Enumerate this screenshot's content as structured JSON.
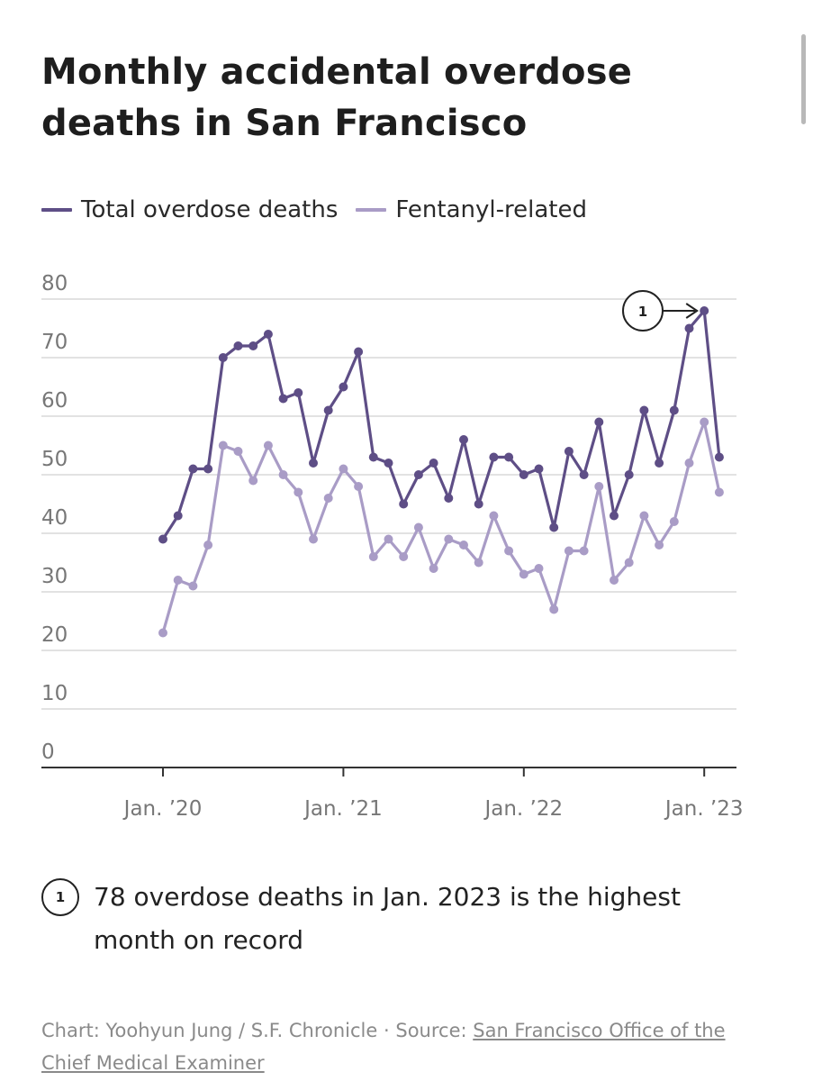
{
  "title": "Monthly accidental overdose deaths in San Francisco",
  "legend": [
    {
      "label": "Total overdose deaths",
      "color": "#5e4e86"
    },
    {
      "label": "Fentanyl-related",
      "color": "#a99cc6"
    }
  ],
  "annotation": {
    "marker": "1",
    "text": "78 overdose deaths in Jan. 2023 is the highest month on record"
  },
  "footer": {
    "credit": "Chart: Yoohyun Jung / S.F. Chronicle",
    "separator": "·",
    "source_label": "Source:",
    "source_link": "San Francisco Office of the Chief Medical Examiner"
  },
  "chart_data": {
    "type": "line",
    "title": "Monthly accidental overdose deaths in San Francisco",
    "xlabel": "",
    "ylabel": "",
    "ylim": [
      0,
      80
    ],
    "yticks": [
      0,
      10,
      20,
      30,
      40,
      50,
      60,
      70,
      80
    ],
    "xtick_labels": [
      {
        "label": "Jan. ’20",
        "x": "2020-01"
      },
      {
        "label": "Jan. ’21",
        "x": "2021-01"
      },
      {
        "label": "Jan. ’22",
        "x": "2022-01"
      },
      {
        "label": "Jan. ’23",
        "x": "2023-01"
      }
    ],
    "grid": true,
    "legend_position": "top-left",
    "x": [
      "2020-01",
      "2020-02",
      "2020-03",
      "2020-04",
      "2020-05",
      "2020-06",
      "2020-07",
      "2020-08",
      "2020-09",
      "2020-10",
      "2020-11",
      "2020-12",
      "2021-01",
      "2021-02",
      "2021-03",
      "2021-04",
      "2021-05",
      "2021-06",
      "2021-07",
      "2021-08",
      "2021-09",
      "2021-10",
      "2021-11",
      "2021-12",
      "2022-01",
      "2022-02",
      "2022-03",
      "2022-04",
      "2022-05",
      "2022-06",
      "2022-07",
      "2022-08",
      "2022-09",
      "2022-10",
      "2022-11",
      "2022-12",
      "2023-01",
      "2023-02"
    ],
    "series": [
      {
        "name": "Total overdose deaths",
        "color": "#5e4e86",
        "values": [
          39,
          43,
          51,
          51,
          70,
          72,
          72,
          74,
          63,
          64,
          52,
          61,
          65,
          71,
          53,
          52,
          45,
          50,
          52,
          46,
          56,
          45,
          53,
          53,
          50,
          51,
          41,
          54,
          50,
          59,
          43,
          50,
          61,
          52,
          61,
          75,
          78,
          53
        ]
      },
      {
        "name": "Fentanyl-related",
        "color": "#a99cc6",
        "values": [
          23,
          32,
          31,
          38,
          55,
          54,
          49,
          55,
          50,
          47,
          39,
          46,
          51,
          48,
          36,
          39,
          36,
          41,
          34,
          39,
          38,
          35,
          43,
          37,
          33,
          34,
          27,
          37,
          37,
          48,
          32,
          35,
          43,
          38,
          42,
          52,
          59,
          47
        ]
      }
    ],
    "annotations": [
      {
        "label": "1",
        "x": "2023-01",
        "y": 78
      }
    ]
  }
}
